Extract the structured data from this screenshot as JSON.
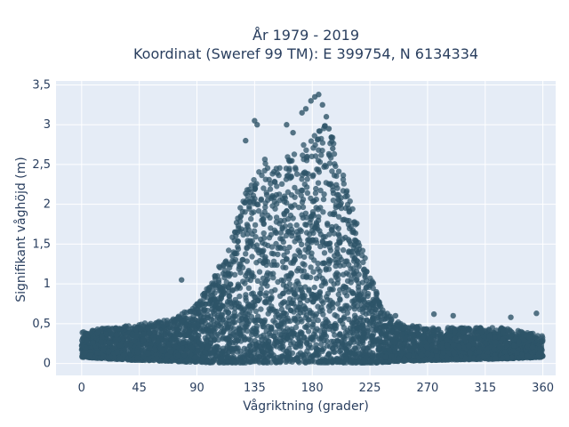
{
  "chart_data": {
    "type": "scatter",
    "title_line1": "År 1979 - 2019",
    "title_line2": "Koordinat (Sweref 99 TM): E 399754, N 6134334",
    "xlabel": "Vågriktning (grader)",
    "ylabel": "Signifikant våghöjd (m)",
    "xlim": [
      -20,
      370
    ],
    "ylim": [
      -0.15,
      3.55
    ],
    "x_ticks": [
      0,
      45,
      90,
      135,
      180,
      225,
      270,
      315,
      360
    ],
    "x_tick_labels": [
      "0",
      "45",
      "90",
      "135",
      "180",
      "225",
      "270",
      "315",
      "360"
    ],
    "y_ticks": [
      0,
      0.5,
      1,
      1.5,
      2,
      2.5,
      3,
      3.5
    ],
    "y_tick_labels": [
      "0",
      "0,5",
      "1",
      "1,5",
      "2",
      "2,5",
      "3",
      "3,5"
    ],
    "grid": true,
    "marker_color": "#2e5468",
    "plot_bg": "#e5ecf6",
    "envelope": {
      "x": [
        0,
        20,
        45,
        70,
        80,
        90,
        100,
        110,
        120,
        130,
        140,
        150,
        160,
        170,
        180,
        190,
        195,
        200,
        210,
        220,
        230,
        240,
        250,
        270,
        300,
        330,
        360
      ],
      "y_max": [
        0.4,
        0.45,
        0.5,
        0.55,
        0.65,
        0.75,
        1.0,
        1.3,
        1.75,
        2.3,
        2.6,
        2.5,
        2.6,
        2.7,
        2.85,
        3.0,
        2.9,
        2.6,
        2.1,
        1.4,
        0.9,
        0.6,
        0.5,
        0.45,
        0.45,
        0.45,
        0.35
      ],
      "y_min": [
        0.08,
        0.06,
        0.04,
        0.03,
        0.02,
        0.02,
        0.01,
        0.01,
        0.01,
        0.01,
        0.01,
        0.01,
        0.01,
        0.01,
        0.01,
        0.01,
        0.01,
        0.01,
        0.01,
        0.01,
        0.01,
        0.02,
        0.03,
        0.04,
        0.05,
        0.06,
        0.08
      ]
    },
    "outliers": [
      {
        "x": 78,
        "y": 1.05
      },
      {
        "x": 135,
        "y": 3.05
      },
      {
        "x": 137,
        "y": 3.0
      },
      {
        "x": 128,
        "y": 2.8
      },
      {
        "x": 160,
        "y": 3.0
      },
      {
        "x": 165,
        "y": 2.9
      },
      {
        "x": 172,
        "y": 3.15
      },
      {
        "x": 175,
        "y": 3.2
      },
      {
        "x": 179,
        "y": 3.3
      },
      {
        "x": 182,
        "y": 3.35
      },
      {
        "x": 185,
        "y": 3.38
      },
      {
        "x": 188,
        "y": 3.25
      },
      {
        "x": 191,
        "y": 3.1
      },
      {
        "x": 193,
        "y": 2.95
      },
      {
        "x": 176,
        "y": 2.6
      },
      {
        "x": 196,
        "y": 2.7
      },
      {
        "x": 210,
        "y": 1.5
      },
      {
        "x": 230,
        "y": 0.9
      },
      {
        "x": 245,
        "y": 0.6
      },
      {
        "x": 275,
        "y": 0.62
      },
      {
        "x": 290,
        "y": 0.6
      },
      {
        "x": 335,
        "y": 0.58
      },
      {
        "x": 355,
        "y": 0.63
      }
    ]
  }
}
